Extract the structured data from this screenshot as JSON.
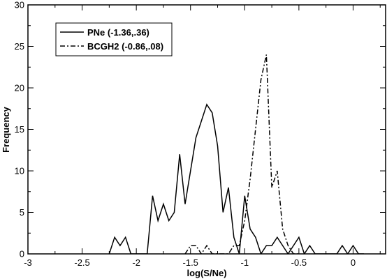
{
  "chart_data": {
    "type": "line",
    "xlabel": "log(S/Ne)",
    "ylabel": "Frequency",
    "xlim": [
      -3,
      0.3
    ],
    "ylim": [
      0,
      30
    ],
    "xticks": [
      -3,
      -2.5,
      -2,
      -1.5,
      -1,
      -0.5,
      0
    ],
    "xtick_labels": [
      "-3",
      "-2.5",
      "-2",
      "-1.5",
      "-1",
      "-0.5",
      "0"
    ],
    "yticks": [
      0,
      5,
      10,
      15,
      20,
      25,
      30
    ],
    "ytick_labels": [
      "0",
      "5",
      "10",
      "15",
      "20",
      "25",
      "30"
    ],
    "grid": false,
    "legend_position": "top-left",
    "series": [
      {
        "name": "PNe (-1.36,.36)",
        "line_style": "solid",
        "color": "#000000",
        "x": [
          -2.25,
          -2.2,
          -2.15,
          -2.1,
          -2.05,
          -2.0,
          -1.95,
          -1.9,
          -1.85,
          -1.8,
          -1.75,
          -1.7,
          -1.65,
          -1.6,
          -1.55,
          -1.5,
          -1.45,
          -1.4,
          -1.35,
          -1.3,
          -1.25,
          -1.2,
          -1.15,
          -1.1,
          -1.05,
          -1.0,
          -0.95,
          -0.9,
          -0.85,
          -0.8,
          -0.75,
          -0.7,
          -0.65,
          -0.6,
          -0.55,
          -0.5,
          -0.45,
          -0.4,
          -0.35,
          -0.3,
          -0.25,
          -0.2,
          -0.15,
          -0.1,
          -0.05,
          0.0,
          0.05,
          0.1
        ],
        "y": [
          0,
          2,
          1,
          2,
          0,
          0,
          0,
          0,
          7,
          4,
          6,
          4,
          5,
          12,
          6,
          10,
          14,
          16,
          18,
          17,
          13,
          5,
          8,
          2,
          0,
          7,
          3,
          2,
          0,
          1,
          1,
          2,
          1,
          0,
          1,
          2,
          0,
          1,
          0,
          0,
          0,
          0,
          0,
          1,
          0,
          1,
          0,
          0
        ]
      },
      {
        "name": "BCGH2 (-0.86,.08)",
        "line_style": "dash-dot",
        "color": "#000000",
        "x": [
          -1.55,
          -1.5,
          -1.45,
          -1.4,
          -1.35,
          -1.3,
          -1.25,
          -1.2,
          -1.15,
          -1.1,
          -1.05,
          -1.0,
          -0.95,
          -0.9,
          -0.85,
          -0.8,
          -0.75,
          -0.7,
          -0.65,
          -0.6,
          -0.55,
          -0.5
        ],
        "y": [
          0,
          1,
          1,
          0,
          1,
          0,
          0,
          0,
          0,
          1,
          1,
          4,
          9,
          15,
          21,
          24,
          8,
          10,
          3,
          1,
          0,
          0
        ]
      }
    ]
  }
}
